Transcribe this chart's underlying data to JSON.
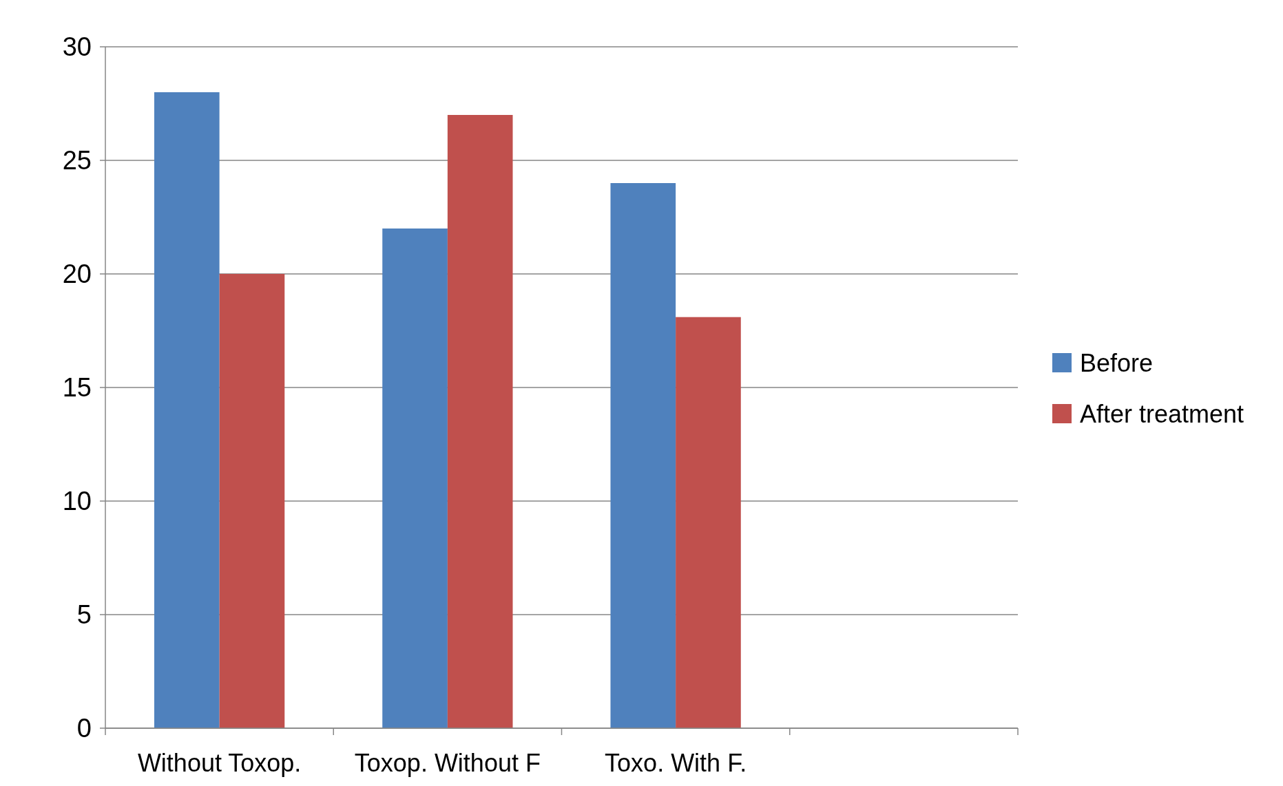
{
  "chart_data": {
    "type": "bar",
    "categories": [
      "Without Toxop.",
      "Toxop. Without F",
      "Toxo. With F.",
      null
    ],
    "series": [
      {
        "name": "Before",
        "color": "#4f81bd",
        "values": [
          28,
          22,
          24,
          null
        ]
      },
      {
        "name": "After treatment",
        "color": "#c0504d",
        "values": [
          20,
          27,
          18.1,
          null
        ]
      }
    ],
    "ylim": [
      0,
      30
    ],
    "yticks": [
      0,
      5,
      10,
      15,
      20,
      25,
      30
    ],
    "grid": "y",
    "legend": "right"
  }
}
